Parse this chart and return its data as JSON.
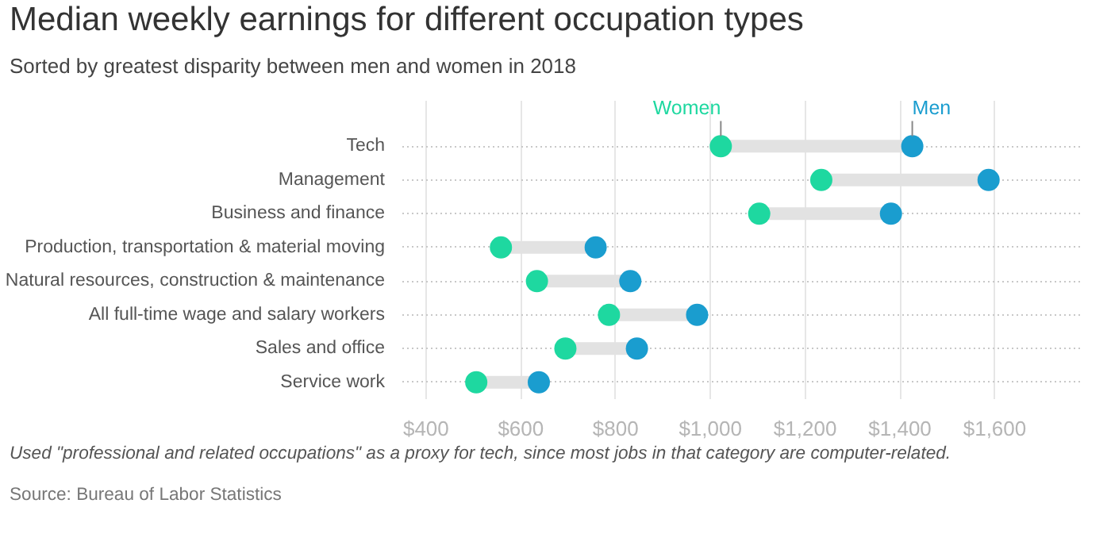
{
  "chart_data": {
    "type": "scatter",
    "orientation": "horizontal",
    "title": "Median weekly earnings for different occupation types",
    "subtitle": "Sorted by greatest disparity between men and women in 2018",
    "categories": [
      "Tech",
      "Management",
      "Business and finance",
      "Production, transportation & material moving",
      "Natural resources, construction & maintenance",
      "All full-time wage and salary workers",
      "Sales and office",
      "Service work"
    ],
    "series": [
      {
        "name": "Women",
        "color": "#1ed8a0",
        "values": [
          1022,
          1234,
          1103,
          558,
          634,
          786,
          694,
          506
        ]
      },
      {
        "name": "Men",
        "color": "#1a9dcf",
        "values": [
          1426,
          1587,
          1381,
          758,
          831,
          972,
          845,
          638
        ]
      }
    ],
    "xlim": [
      350,
      1780
    ],
    "xticks": [
      {
        "value": 400,
        "label": "$400"
      },
      {
        "value": 600,
        "label": "$600"
      },
      {
        "value": 800,
        "label": "$800"
      },
      {
        "value": 1000,
        "label": "$1,000"
      },
      {
        "value": 1200,
        "label": "$1,200"
      },
      {
        "value": 1400,
        "label": "$1,400"
      },
      {
        "value": 1600,
        "label": "$1,600"
      }
    ],
    "grid": true,
    "marker": "circle",
    "annotations": [
      "Used \"professional and related occupations\" as a proxy for tech, since most jobs in that category are computer-related.",
      "Source: Bureau of Labor Statistics"
    ]
  }
}
